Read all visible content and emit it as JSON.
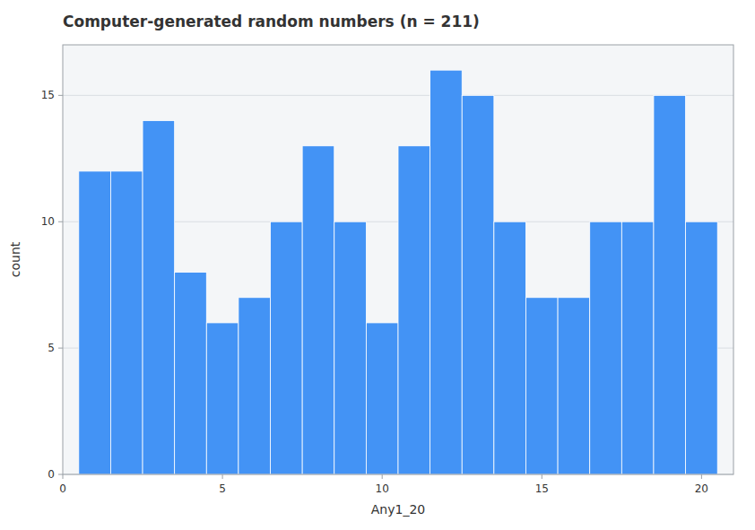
{
  "chart_data": {
    "type": "bar",
    "title": "Computer-generated random numbers (n = 211)",
    "xlabel": "Any1_20",
    "ylabel": "count",
    "x": [
      1,
      2,
      3,
      4,
      5,
      6,
      7,
      8,
      9,
      10,
      11,
      12,
      13,
      14,
      15,
      16,
      17,
      18,
      19,
      20
    ],
    "values": [
      12,
      12,
      14,
      8,
      6,
      7,
      10,
      13,
      10,
      6,
      13,
      16,
      15,
      10,
      7,
      7,
      10,
      10,
      15,
      10
    ],
    "color": "#4393f5",
    "xlim": [
      0.0,
      21.0
    ],
    "ylim": [
      0,
      17
    ],
    "xticks": [
      0,
      5,
      10,
      15,
      20
    ],
    "yticks": [
      0,
      5,
      10,
      15
    ],
    "grid": true
  }
}
